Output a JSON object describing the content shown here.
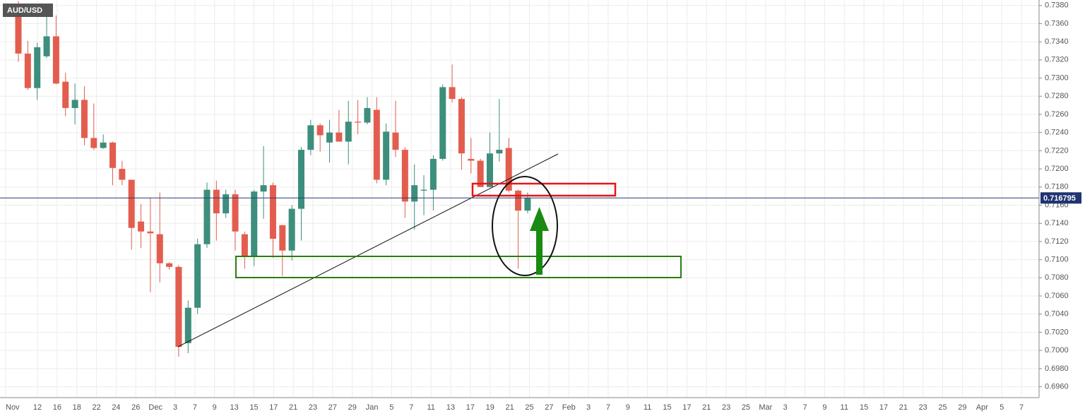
{
  "chart_data": {
    "type": "candlestick",
    "symbol": "AUD/USD",
    "open": [
      0.738,
      0.7327,
      0.7289,
      0.7324,
      0.7346,
      0.7296,
      0.7267,
      0.7276,
      0.7234,
      0.7223,
      0.7229,
      0.72,
      0.7188,
      0.7142,
      0.7131,
      0.7128,
      0.7096,
      0.7092,
      0.7008,
      0.7047,
      0.7117,
      0.7177,
      0.7151,
      0.7172,
      0.7128,
      0.7104,
      0.7175,
      0.7182,
      0.7138,
      0.711,
      0.7156,
      0.7221,
      0.7248,
      0.7229,
      0.724,
      0.723,
      0.7252,
      0.7251,
      0.7265,
      0.7188,
      0.724,
      0.7221,
      0.7164,
      0.7176,
      0.7177,
      0.7211,
      0.729,
      0.7277,
      0.7211,
      0.7209,
      0.718,
      0.7217,
      0.7223,
      0.7176,
      0.7154
    ],
    "high": [
      0.7385,
      0.7341,
      0.7339,
      0.7369,
      0.7369,
      0.7306,
      0.7294,
      0.7291,
      0.7272,
      0.7238,
      0.723,
      0.7209,
      0.7188,
      0.7161,
      0.7168,
      0.7174,
      0.7097,
      0.7094,
      0.7055,
      0.7123,
      0.7185,
      0.7187,
      0.7177,
      0.7177,
      0.7131,
      0.7177,
      0.7225,
      0.7185,
      0.7138,
      0.716,
      0.7224,
      0.7254,
      0.725,
      0.7254,
      0.7265,
      0.7275,
      0.7276,
      0.7279,
      0.7279,
      0.725,
      0.7275,
      0.7224,
      0.7205,
      0.7193,
      0.7215,
      0.7293,
      0.7315,
      0.7279,
      0.7234,
      0.7211,
      0.724,
      0.7277,
      0.7234,
      0.7177,
      0.7174
    ],
    "low": [
      0.7318,
      0.7287,
      0.7276,
      0.7322,
      0.7293,
      0.7258,
      0.7249,
      0.7226,
      0.7221,
      0.7222,
      0.7182,
      0.7182,
      0.7111,
      0.7113,
      0.7064,
      0.7075,
      0.7089,
      0.6993,
      0.6997,
      0.704,
      0.7113,
      0.7121,
      0.7146,
      0.711,
      0.709,
      0.7093,
      0.7145,
      0.7102,
      0.7082,
      0.7099,
      0.7121,
      0.7215,
      0.7219,
      0.7207,
      0.723,
      0.7205,
      0.7238,
      0.7249,
      0.7184,
      0.7182,
      0.7213,
      0.7146,
      0.7133,
      0.7149,
      0.7154,
      0.7209,
      0.7273,
      0.7199,
      0.7195,
      0.718,
      0.718,
      0.7208,
      0.7174,
      0.709,
      0.7151
    ],
    "close": [
      0.7327,
      0.7289,
      0.7334,
      0.7346,
      0.7294,
      0.7267,
      0.7276,
      0.7234,
      0.7223,
      0.7229,
      0.7201,
      0.7188,
      0.7135,
      0.7131,
      0.7129,
      0.7096,
      0.7092,
      0.7004,
      0.7047,
      0.7117,
      0.7177,
      0.7151,
      0.7172,
      0.7131,
      0.7104,
      0.7175,
      0.7182,
      0.7123,
      0.711,
      0.7156,
      0.7221,
      0.7248,
      0.7237,
      0.724,
      0.723,
      0.7252,
      0.7251,
      0.7267,
      0.7188,
      0.7241,
      0.7221,
      0.7164,
      0.7182,
      0.7177,
      0.7211,
      0.729,
      0.7277,
      0.7217,
      0.7209,
      0.718,
      0.7217,
      0.7221,
      0.7176,
      0.7154,
      0.7168
    ],
    "up_color": "#3d8e7c",
    "down_color": "#e35d4e",
    "current_price": 0.716795,
    "x_tick_labels": [
      "Nov",
      "12",
      "16",
      "18",
      "22",
      "24",
      "26",
      "Dec",
      "3",
      "7",
      "9",
      "13",
      "15",
      "17",
      "21",
      "23",
      "27",
      "29",
      "Jan",
      "5",
      "7",
      "11",
      "13",
      "17",
      "19",
      "21",
      "25",
      "27",
      "Feb",
      "3",
      "7",
      "9",
      "11",
      "15",
      "17",
      "21",
      "23",
      "25",
      "Mar",
      "3",
      "7",
      "9",
      "11",
      "15",
      "17",
      "21",
      "23",
      "25",
      "29",
      "Apr",
      "5",
      "7"
    ],
    "ylim": [
      0.6948,
      0.7386
    ],
    "yticks": [
      {
        "value": 0.738,
        "label": "0.7380"
      },
      {
        "value": 0.736,
        "label": "0.7360"
      },
      {
        "value": 0.734,
        "label": "0.7340"
      },
      {
        "value": 0.732,
        "label": "0.7320"
      },
      {
        "value": 0.73,
        "label": "0.7300"
      },
      {
        "value": 0.728,
        "label": "0.7280"
      },
      {
        "value": 0.726,
        "label": "0.7260"
      },
      {
        "value": 0.724,
        "label": "0.7240"
      },
      {
        "value": 0.722,
        "label": "0.7220"
      },
      {
        "value": 0.72,
        "label": "0.7200"
      },
      {
        "value": 0.718,
        "label": "0.7180"
      },
      {
        "value": 0.716,
        "label": "0.7160"
      },
      {
        "value": 0.714,
        "label": "0.7140"
      },
      {
        "value": 0.712,
        "label": "0.7120"
      },
      {
        "value": 0.71,
        "label": "0.7100"
      },
      {
        "value": 0.708,
        "label": "0.7080"
      },
      {
        "value": 0.706,
        "label": "0.7060"
      },
      {
        "value": 0.704,
        "label": "0.7040"
      },
      {
        "value": 0.702,
        "label": "0.7020"
      },
      {
        "value": 0.7,
        "label": "0.7000"
      },
      {
        "value": 0.698,
        "label": "0.6980"
      },
      {
        "value": 0.696,
        "label": "0.6960"
      }
    ],
    "grid": true
  }
}
